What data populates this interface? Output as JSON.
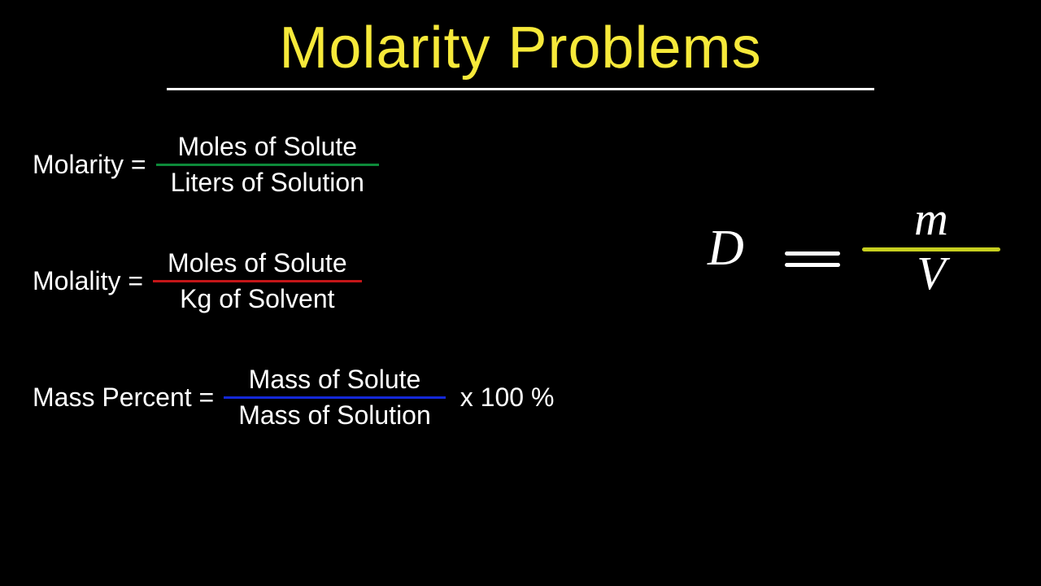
{
  "title": {
    "text": "Molarity Problems",
    "color": "#f6e93a",
    "fontsize": 72,
    "underline_color": "#ffffff",
    "underline_width": 870
  },
  "formulas": [
    {
      "lhs": "Molarity  =",
      "numerator": "Moles of Solute",
      "denominator": "Liters of Solution",
      "line_color": "#0d8a3a",
      "suffix": ""
    },
    {
      "lhs": "Molality  =",
      "numerator": "Moles of Solute",
      "denominator": "Kg of Solvent",
      "line_color": "#c41618",
      "suffix": ""
    },
    {
      "lhs": "Mass Percent  =",
      "numerator": "Mass of Solute",
      "denominator": "Mass of Solution",
      "line_color": "#1428d8",
      "suffix": "x  100 %"
    }
  ],
  "density": {
    "D": "D",
    "m": "m",
    "v": "V",
    "line_color": "#c7cf1f",
    "text_color": "#ffffff"
  },
  "colors": {
    "background": "#000000",
    "text": "#ffffff"
  },
  "typography": {
    "title_font": "Comic Sans MS",
    "body_font": "Comic Sans MS",
    "hand_font": "Brush Script MT",
    "body_fontsize": 32
  }
}
